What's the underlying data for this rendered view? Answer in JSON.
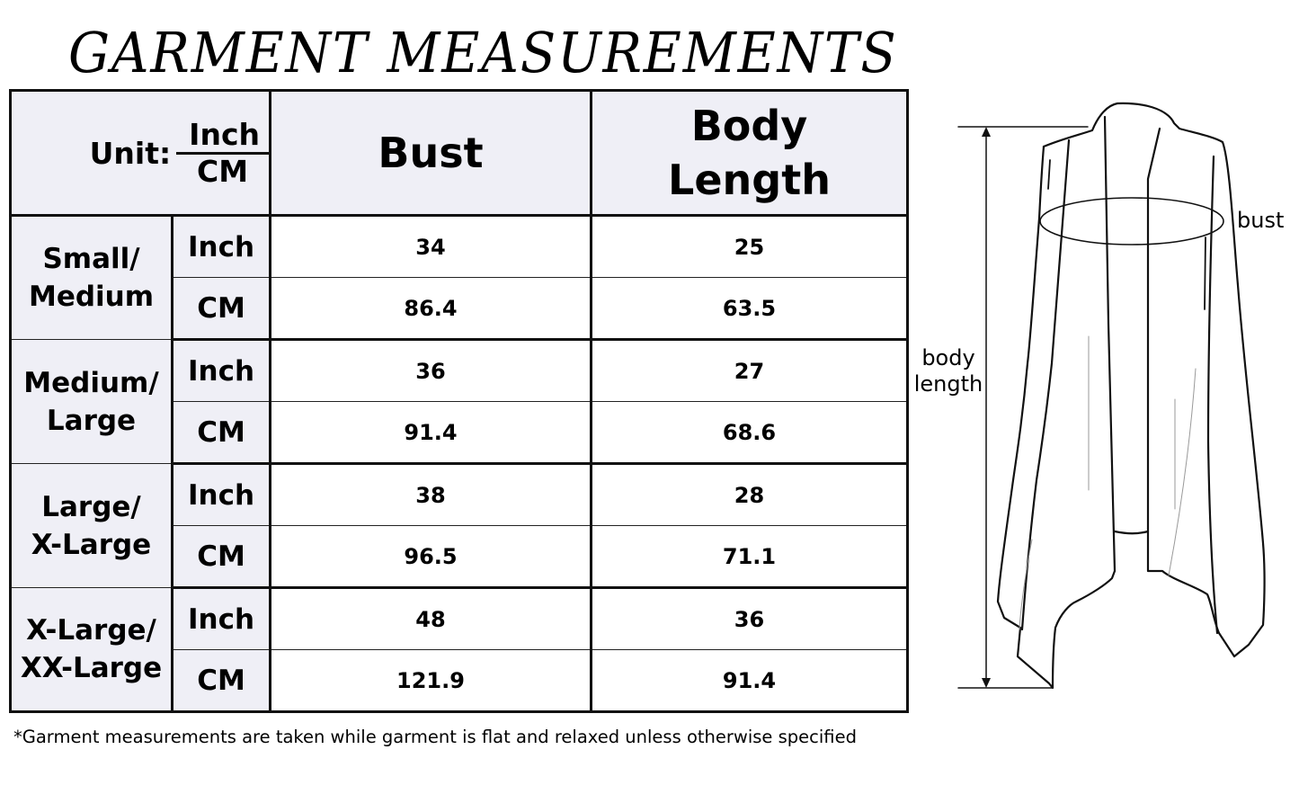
{
  "title": "GARMENT MEASUREMENTS",
  "table": {
    "unit_label": "Unit:",
    "unit_top": "Inch",
    "unit_bottom": "CM",
    "columns": [
      "Bust",
      "Body Length"
    ],
    "column_lines": {
      "body_length_1": "Body",
      "body_length_2": "Length"
    },
    "sizes": [
      {
        "name_1": "Small/",
        "name_2": "Medium",
        "rows": [
          {
            "unit": "Inch",
            "bust": "34",
            "length": "25"
          },
          {
            "unit": "CM",
            "bust": "86.4",
            "length": "63.5"
          }
        ]
      },
      {
        "name_1": "Medium/",
        "name_2": "Large",
        "rows": [
          {
            "unit": "Inch",
            "bust": "36",
            "length": "27"
          },
          {
            "unit": "CM",
            "bust": "91.4",
            "length": "68.6"
          }
        ]
      },
      {
        "name_1": "Large/",
        "name_2": "X-Large",
        "rows": [
          {
            "unit": "Inch",
            "bust": "38",
            "length": "28"
          },
          {
            "unit": "CM",
            "bust": "96.5",
            "length": "71.1"
          }
        ]
      },
      {
        "name_1": "X-Large/",
        "name_2": "XX-Large",
        "rows": [
          {
            "unit": "Inch",
            "bust": "48",
            "length": "36"
          },
          {
            "unit": "CM",
            "bust": "121.9",
            "length": "91.4"
          }
        ]
      }
    ]
  },
  "footnote": "*Garment measurements are taken while garment is flat and relaxed unless otherwise specified",
  "diagram": {
    "bust_label": "bust",
    "length_label_1": "body",
    "length_label_2": "length"
  },
  "colors": {
    "header_bg": "#efeff6",
    "border": "#111111"
  }
}
